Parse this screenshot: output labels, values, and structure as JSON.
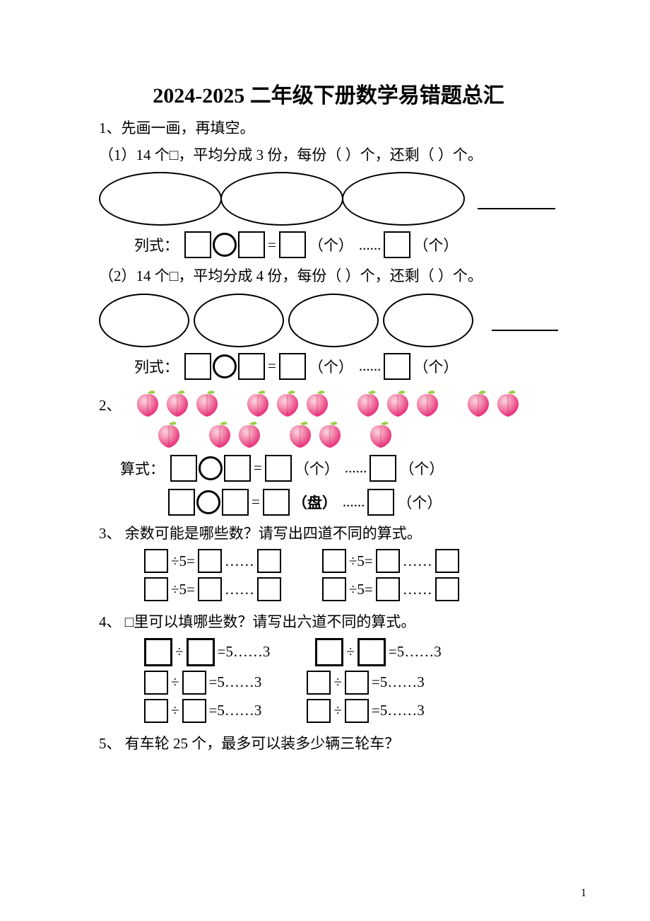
{
  "title": "2024-2025 二年级下册数学易错题总汇",
  "q1": {
    "intro": "1、先画一画，再填空。",
    "sub1": "（1）14 个□，平均分成 3 份，每份（ ）个，还剩（ ）个。",
    "sub2": "（2）14 个□，平均分成 4 份，每份（ ）个，还剩（ ）个。",
    "lieshi": "列式：",
    "unit_ge": "（个）",
    "unit_pan": "（盘）",
    "dots": "......",
    "eq": "="
  },
  "q2": {
    "label": "2、",
    "suanshi": "算式：",
    "peach_groups_row1": [
      3,
      3,
      3,
      2
    ],
    "peach_groups_row2": [
      1,
      2,
      2,
      1
    ],
    "unit_ge": "（个）",
    "unit_pan": "（盘）",
    "dots": "......",
    "eq": "="
  },
  "q3": {
    "text": "3、 余数可能是哪些数？请写出四道不同的算式。",
    "div5": "÷5=",
    "dots": "……"
  },
  "q4": {
    "text": "4、 □里可以填哪些数？请写出六道不同的算式。",
    "div": "÷",
    "tail": "=5……3"
  },
  "q5": {
    "text": "5、 有车轮 25 个，最多可以装多少辆三轮车？"
  },
  "page_number": "1",
  "colors": {
    "peach_top": "#f6a3b8",
    "peach_bottom": "#e7307a",
    "peach_leaf": "#9ccf4a"
  }
}
